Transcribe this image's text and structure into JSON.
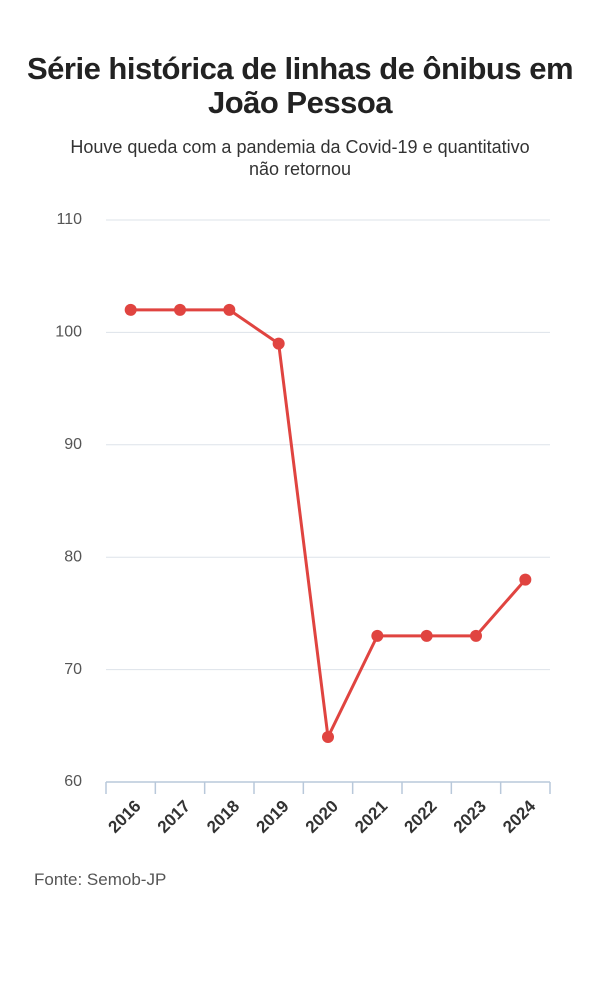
{
  "chart_data": {
    "type": "line",
    "title": "Série histórica de linhas de ônibus em João Pessoa",
    "subtitle": "Houve queda com a pandemia da Covid-19 e quantitativo não retornou",
    "source": "Fonte: Semob-JP",
    "categories": [
      "2016",
      "2017",
      "2018",
      "2019",
      "2020",
      "2021",
      "2022",
      "2023",
      "2024"
    ],
    "values": [
      102,
      102,
      102,
      99,
      64,
      73,
      73,
      73,
      78
    ],
    "color": "#e04440",
    "ylim": [
      60,
      110
    ],
    "yticks": [
      60,
      70,
      80,
      90,
      100,
      110
    ],
    "grid": true
  }
}
